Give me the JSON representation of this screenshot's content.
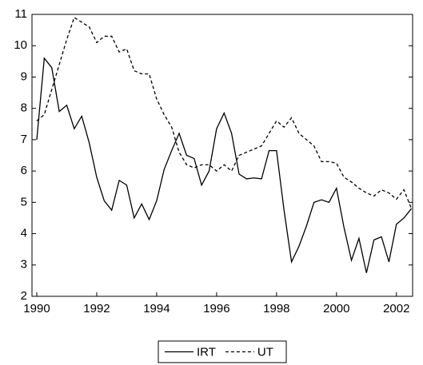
{
  "chart_data": {
    "type": "line",
    "x": [
      1990,
      1990.25,
      1990.5,
      1990.75,
      1991,
      1991.25,
      1991.5,
      1991.75,
      1992,
      1992.25,
      1992.5,
      1992.75,
      1993,
      1993.25,
      1993.5,
      1993.75,
      1994,
      1994.25,
      1994.5,
      1994.75,
      1995,
      1995.25,
      1995.5,
      1995.75,
      1996,
      1996.25,
      1996.5,
      1996.75,
      1997,
      1997.25,
      1997.5,
      1997.75,
      1998,
      1998.25,
      1998.5,
      1998.75,
      1999,
      1999.25,
      1999.5,
      1999.75,
      2000,
      2000.25,
      2000.5,
      2000.75,
      2001,
      2001.25,
      2001.5,
      2001.75,
      2002,
      2002.25,
      2002.5
    ],
    "series": [
      {
        "name": "IRT",
        "color": "#000000",
        "style": "solid",
        "values": [
          7.0,
          9.6,
          9.3,
          7.9,
          8.1,
          7.35,
          7.75,
          6.9,
          5.8,
          5.05,
          4.75,
          5.7,
          5.55,
          4.5,
          4.95,
          4.45,
          5.05,
          6.05,
          6.65,
          7.2,
          6.5,
          6.4,
          5.55,
          6.0,
          7.35,
          7.85,
          7.2,
          5.9,
          5.75,
          5.78,
          5.75,
          6.65,
          6.65,
          4.75,
          3.1,
          3.6,
          4.25,
          5.0,
          5.08,
          5.0,
          5.45,
          4.2,
          3.15,
          3.85,
          2.75,
          3.8,
          3.9,
          3.1,
          4.3,
          4.5,
          4.8
        ]
      },
      {
        "name": "UT",
        "color": "#000000",
        "style": "dashed",
        "values": [
          7.6,
          7.8,
          8.6,
          9.4,
          10.2,
          10.9,
          10.75,
          10.6,
          10.1,
          10.3,
          10.3,
          9.8,
          9.9,
          9.2,
          9.1,
          9.1,
          8.3,
          7.8,
          7.4,
          6.6,
          6.2,
          6.1,
          6.2,
          6.2,
          6.0,
          6.2,
          6.0,
          6.5,
          6.6,
          6.7,
          6.8,
          7.2,
          7.6,
          7.4,
          7.7,
          7.2,
          7.0,
          6.8,
          6.3,
          6.3,
          6.25,
          5.8,
          5.65,
          5.45,
          5.3,
          5.2,
          5.4,
          5.3,
          5.1,
          5.4,
          4.8
        ]
      }
    ],
    "xlim": [
      1989.84,
      2002.54
    ],
    "xticks": [
      1990,
      1992,
      1994,
      1996,
      1998,
      2000,
      2002
    ],
    "ylim": [
      2,
      11
    ],
    "yticks": [
      2,
      3,
      4,
      5,
      6,
      7,
      8,
      9,
      10,
      11
    ],
    "grid": false,
    "legend": "bottom"
  }
}
